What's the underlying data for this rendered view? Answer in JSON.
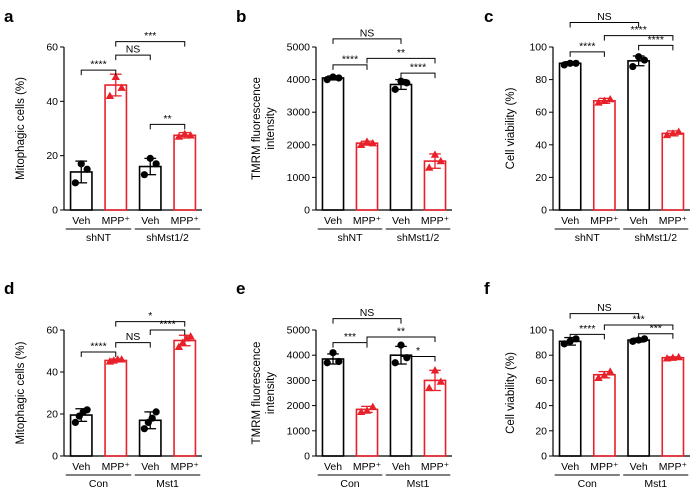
{
  "figure": {
    "panels": [
      {
        "id": "a",
        "letter": "a"
      },
      {
        "id": "b",
        "letter": "b"
      },
      {
        "id": "c",
        "letter": "c"
      },
      {
        "id": "d",
        "letter": "d"
      },
      {
        "id": "e",
        "letter": "e"
      },
      {
        "id": "f",
        "letter": "f"
      }
    ]
  },
  "colors": {
    "control": "#000000",
    "treated": "#e8202a"
  },
  "chart_data": [
    {
      "id": "a",
      "type": "bar",
      "title": "",
      "xlabel": "",
      "ylabel": "Mitophagic cells (%)",
      "ylim": [
        0,
        60
      ],
      "yticks": [
        0,
        20,
        40,
        60
      ],
      "categories": [
        "Veh",
        "MPP⁺",
        "Veh",
        "MPP⁺"
      ],
      "groups": [
        {
          "label": "shNT",
          "span": [
            0,
            1
          ]
        },
        {
          "label": "shMst1/2",
          "span": [
            2,
            3
          ]
        }
      ],
      "colors": [
        "control",
        "treated",
        "control",
        "treated"
      ],
      "values": [
        14,
        46,
        16,
        27.5
      ],
      "errors": [
        4,
        4,
        3,
        1
      ],
      "points": [
        [
          10,
          17,
          15
        ],
        [
          42,
          49,
          45
        ],
        [
          13,
          19,
          17
        ],
        [
          27,
          28,
          27.5
        ]
      ],
      "significance": [
        {
          "from": 0,
          "to": 1,
          "label": "****",
          "y": 51.5
        },
        {
          "from": 2,
          "to": 3,
          "label": "**",
          "y": 31.5
        },
        {
          "from": 1,
          "to": 2,
          "label": "NS",
          "y": 57
        },
        {
          "from": 1,
          "to": 3,
          "label": "***",
          "y": 62
        }
      ]
    },
    {
      "id": "b",
      "type": "bar",
      "title": "",
      "xlabel": "",
      "ylabel": "TMRM fluorescence intensity",
      "ylabel_lines": [
        "TMRM fluorescence",
        "intensity"
      ],
      "ylim": [
        0,
        5000
      ],
      "yticks": [
        0,
        1000,
        2000,
        3000,
        4000,
        5000
      ],
      "categories": [
        "Veh",
        "MPP⁺",
        "Veh",
        "MPP⁺"
      ],
      "groups": [
        {
          "label": "shNT",
          "span": [
            0,
            1
          ]
        },
        {
          "label": "shMst1/2",
          "span": [
            2,
            3
          ]
        }
      ],
      "colors": [
        "control",
        "treated",
        "control",
        "treated"
      ],
      "values": [
        4050,
        2050,
        3850,
        1500
      ],
      "errors": [
        60,
        60,
        150,
        220
      ],
      "points": [
        [
          4000,
          4080,
          4050
        ],
        [
          2000,
          2100,
          2050
        ],
        [
          3700,
          3950,
          3900
        ],
        [
          1300,
          1700,
          1500
        ]
      ],
      "significance": [
        {
          "from": 0,
          "to": 1,
          "label": "****",
          "y": 4450
        },
        {
          "from": 2,
          "to": 3,
          "label": "****",
          "y": 4200
        },
        {
          "from": 1,
          "to": 3,
          "label": "**",
          "y": 4650
        },
        {
          "from": 0,
          "to": 2,
          "label": "NS",
          "y": 5250
        }
      ]
    },
    {
      "id": "c",
      "type": "bar",
      "title": "",
      "xlabel": "",
      "ylabel": "Cell viability (%)",
      "ylim": [
        0,
        100
      ],
      "yticks": [
        0,
        20,
        40,
        60,
        80,
        100
      ],
      "categories": [
        "Veh",
        "MPP⁺",
        "Veh",
        "MPP⁺"
      ],
      "groups": [
        {
          "label": "shNT",
          "span": [
            0,
            1
          ]
        },
        {
          "label": "shMst1/2",
          "span": [
            2,
            3
          ]
        }
      ],
      "colors": [
        "control",
        "treated",
        "control",
        "treated"
      ],
      "values": [
        90,
        67,
        91.5,
        47
      ],
      "errors": [
        1,
        1.5,
        3,
        1.5
      ],
      "points": [
        [
          89,
          90,
          90
        ],
        [
          66,
          67,
          68
        ],
        [
          88,
          94,
          92
        ],
        [
          46,
          47,
          48
        ]
      ],
      "significance": [
        {
          "from": 0,
          "to": 1,
          "label": "****",
          "y": 97
        },
        {
          "from": 2,
          "to": 3,
          "label": "****",
          "y": 101
        },
        {
          "from": 1,
          "to": 3,
          "label": "****",
          "y": 107
        },
        {
          "from": 0,
          "to": 2,
          "label": "NS",
          "y": 115
        }
      ]
    },
    {
      "id": "d",
      "type": "bar",
      "title": "",
      "xlabel": "",
      "ylabel": "Mitophagic cells (%)",
      "ylim": [
        0,
        60
      ],
      "yticks": [
        0,
        20,
        40,
        60
      ],
      "categories": [
        "Veh",
        "MPP⁺",
        "Veh",
        "MPP⁺"
      ],
      "groups": [
        {
          "label": "Con",
          "span": [
            0,
            1
          ]
        },
        {
          "label": "Mst1",
          "span": [
            2,
            3
          ]
        }
      ],
      "colors": [
        "control",
        "treated",
        "control",
        "treated"
      ],
      "values": [
        19.5,
        45.5,
        17,
        55
      ],
      "errors": [
        3,
        0.7,
        4,
        2.5
      ],
      "points": [
        [
          16,
          19,
          21,
          22
        ],
        [
          45,
          45.5,
          46,
          46
        ],
        [
          13,
          16,
          18,
          21
        ],
        [
          52,
          54,
          56,
          57
        ]
      ],
      "significance": [
        {
          "from": 0,
          "to": 1,
          "label": "****",
          "y": 49.5
        },
        {
          "from": 1,
          "to": 2,
          "label": "NS",
          "y": 54
        },
        {
          "from": 2,
          "to": 3,
          "label": "****",
          "y": 60
        },
        {
          "from": 1,
          "to": 3,
          "label": "*",
          "y": 64
        }
      ]
    },
    {
      "id": "e",
      "type": "bar",
      "title": "",
      "xlabel": "",
      "ylabel": "TMRM fluorescence intensity",
      "ylabel_lines": [
        "TMRM fluorescence",
        "intensity"
      ],
      "ylim": [
        0,
        5000
      ],
      "yticks": [
        0,
        1000,
        2000,
        3000,
        4000,
        5000
      ],
      "categories": [
        "Veh",
        "MPP⁺",
        "Veh",
        "MPP⁺"
      ],
      "groups": [
        {
          "label": "Con",
          "span": [
            0,
            1
          ]
        },
        {
          "label": "Mst1",
          "span": [
            2,
            3
          ]
        }
      ],
      "colors": [
        "control",
        "treated",
        "control",
        "treated"
      ],
      "values": [
        3850,
        1850,
        4000,
        3000
      ],
      "errors": [
        200,
        120,
        350,
        400
      ],
      "points": [
        [
          3700,
          4100,
          3750
        ],
        [
          1750,
          1800,
          1950
        ],
        [
          3700,
          4400,
          3900
        ],
        [
          2700,
          3400,
          2950
        ]
      ],
      "significance": [
        {
          "from": 0,
          "to": 1,
          "label": "***",
          "y": 4500
        },
        {
          "from": 2,
          "to": 3,
          "label": "*",
          "y": 3950
        },
        {
          "from": 1,
          "to": 3,
          "label": "**",
          "y": 4720
        },
        {
          "from": 0,
          "to": 2,
          "label": "NS",
          "y": 5450
        }
      ]
    },
    {
      "id": "f",
      "type": "bar",
      "title": "",
      "xlabel": "",
      "ylabel": "Cell viability (%)",
      "ylim": [
        0,
        100
      ],
      "yticks": [
        0,
        20,
        40,
        60,
        80,
        100
      ],
      "categories": [
        "Veh",
        "MPP⁺",
        "Veh",
        "MPP⁺"
      ],
      "groups": [
        {
          "label": "Con",
          "span": [
            0,
            1
          ]
        },
        {
          "label": "Mst1",
          "span": [
            2,
            3
          ]
        }
      ],
      "colors": [
        "control",
        "treated",
        "control",
        "treated"
      ],
      "values": [
        91,
        64.5,
        92,
        78
      ],
      "errors": [
        3,
        2.5,
        1.5,
        0.7
      ],
      "points": [
        [
          89,
          91,
          93
        ],
        [
          62,
          64,
          67
        ],
        [
          91,
          92,
          93
        ],
        [
          77.5,
          78,
          78.5
        ]
      ],
      "significance": [
        {
          "from": 0,
          "to": 1,
          "label": "****",
          "y": 96.5
        },
        {
          "from": 2,
          "to": 3,
          "label": "***",
          "y": 97
        },
        {
          "from": 1,
          "to": 3,
          "label": "***",
          "y": 104
        },
        {
          "from": 0,
          "to": 2,
          "label": "NS",
          "y": 113
        }
      ]
    }
  ]
}
